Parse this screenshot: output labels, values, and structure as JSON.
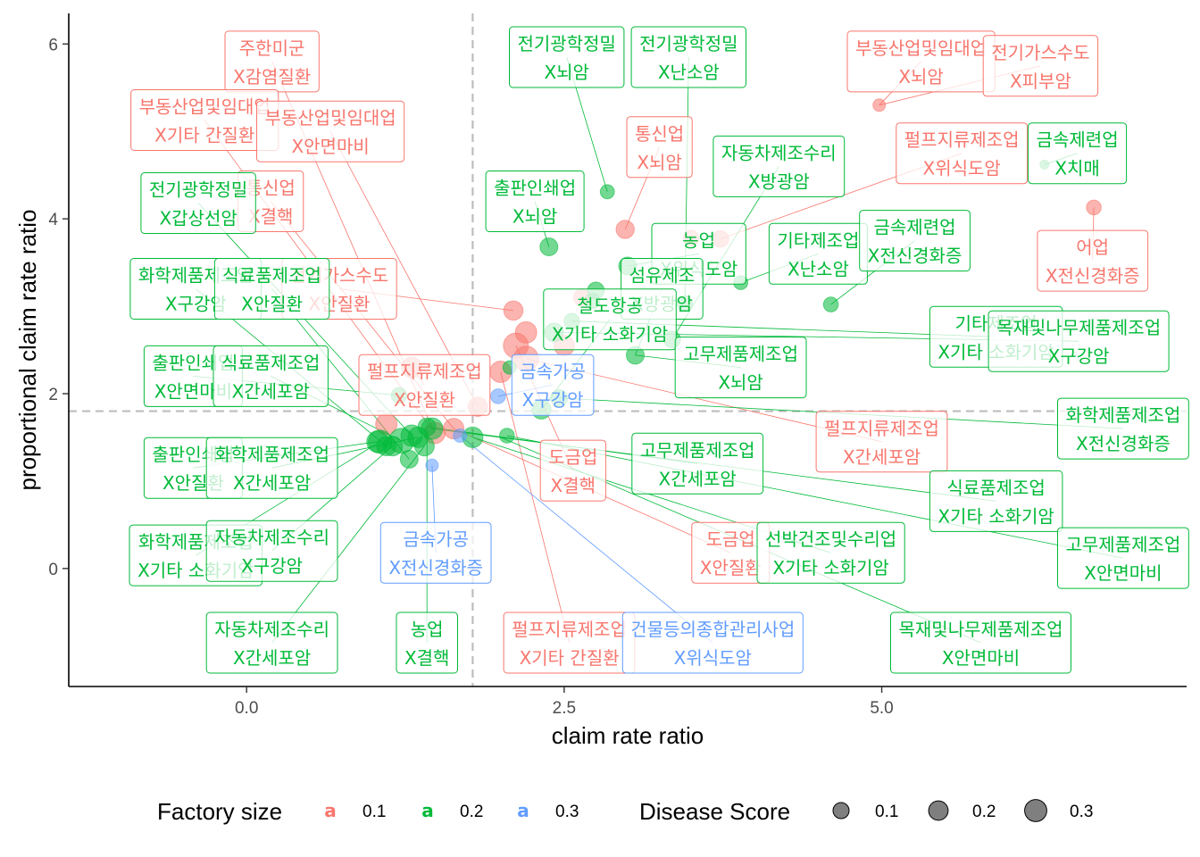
{
  "chart_data": {
    "type": "scatter",
    "xlabel": "claim rate ratio",
    "ylabel": "proportional claim rate ratio",
    "xlim": [
      -1.4,
      7.4
    ],
    "ylim": [
      -1.35,
      6.35
    ],
    "x_ticks": [
      0.0,
      2.5,
      5.0
    ],
    "x_tick_labels": [
      "0.0",
      "2.5",
      "5.0"
    ],
    "y_ticks": [
      0,
      2,
      4,
      6
    ],
    "y_tick_labels": [
      "0",
      "2",
      "4",
      "6"
    ],
    "ref_lines": {
      "x": 1.78,
      "y": 1.8
    },
    "grid": false,
    "legend_position": "bottom",
    "colors": {
      "0.1": "#F8766D",
      "0.2": "#00BA38",
      "0.3": "#619CFF"
    },
    "legend": {
      "color_title": "Factory size",
      "color_keys": [
        {
          "key": "a",
          "label": "0.1",
          "group": "0.1"
        },
        {
          "key": "a",
          "label": "0.2",
          "group": "0.2"
        },
        {
          "key": "a",
          "label": "0.3",
          "group": "0.3"
        }
      ],
      "size_title": "Disease Score",
      "size_keys": [
        {
          "label": "0.1",
          "score": 0.1
        },
        {
          "label": "0.2",
          "score": 0.2
        },
        {
          "label": "0.3",
          "score": 0.3
        }
      ]
    },
    "points": [
      {
        "x": 2.0,
        "y": 2.25,
        "g": "0.1",
        "s": 0.2
      },
      {
        "x": 3.73,
        "y": 3.77,
        "g": "0.1",
        "s": 0.1
      },
      {
        "x": 3.5,
        "y": 3.78,
        "g": "0.1",
        "s": 0.08
      },
      {
        "x": 2.1,
        "y": 2.95,
        "g": "0.1",
        "s": 0.15
      },
      {
        "x": 2.5,
        "y": 2.55,
        "g": "0.1",
        "s": 0.18
      },
      {
        "x": 1.3,
        "y": 2.3,
        "g": "0.1",
        "s": 0.18
      },
      {
        "x": 1.48,
        "y": 1.55,
        "g": "0.1",
        "s": 0.2
      },
      {
        "x": 1.1,
        "y": 1.65,
        "g": "0.1",
        "s": 0.2
      },
      {
        "x": 1.82,
        "y": 1.85,
        "g": "0.1",
        "s": 0.15
      },
      {
        "x": 2.2,
        "y": 2.7,
        "g": "0.1",
        "s": 0.2
      },
      {
        "x": 2.12,
        "y": 2.55,
        "g": "0.1",
        "s": 0.3
      },
      {
        "x": 2.2,
        "y": 2.4,
        "g": "0.1",
        "s": 0.3
      },
      {
        "x": 1.63,
        "y": 1.6,
        "g": "0.1",
        "s": 0.18
      },
      {
        "x": 6.67,
        "y": 4.13,
        "g": "0.1",
        "s": 0.07
      },
      {
        "x": 4.98,
        "y": 5.3,
        "g": "0.1",
        "s": 0.04
      },
      {
        "x": 2.64,
        "y": 3.1,
        "g": "0.1",
        "s": 0.1
      },
      {
        "x": 2.98,
        "y": 3.88,
        "g": "0.1",
        "s": 0.13
      },
      {
        "x": 2.07,
        "y": 2.3,
        "g": "0.2",
        "s": 0.05
      },
      {
        "x": 2.84,
        "y": 4.31,
        "g": "0.2",
        "s": 0.06
      },
      {
        "x": 2.38,
        "y": 3.68,
        "g": "0.2",
        "s": 0.12
      },
      {
        "x": 3.89,
        "y": 3.27,
        "g": "0.2",
        "s": 0.06
      },
      {
        "x": 3.45,
        "y": 3.03,
        "g": "0.2",
        "s": 0.08
      },
      {
        "x": 4.6,
        "y": 3.02,
        "g": "0.2",
        "s": 0.07
      },
      {
        "x": 6.28,
        "y": 4.62,
        "g": "0.2",
        "s": 0.01
      },
      {
        "x": 3.0,
        "y": 3.46,
        "g": "0.2",
        "s": 0.12
      },
      {
        "x": 2.75,
        "y": 3.18,
        "g": "0.2",
        "s": 0.1
      },
      {
        "x": 2.72,
        "y": 3.06,
        "g": "0.2",
        "s": 0.08
      },
      {
        "x": 2.56,
        "y": 2.83,
        "g": "0.2",
        "s": 0.08
      },
      {
        "x": 3.35,
        "y": 2.62,
        "g": "0.2",
        "s": 0.1
      },
      {
        "x": 3.06,
        "y": 2.44,
        "g": "0.2",
        "s": 0.12
      },
      {
        "x": 2.42,
        "y": 2.7,
        "g": "0.2",
        "s": 0.14
      },
      {
        "x": 2.32,
        "y": 1.82,
        "g": "0.2",
        "s": 0.15
      },
      {
        "x": 1.2,
        "y": 1.98,
        "g": "0.2",
        "s": 0.08
      },
      {
        "x": 2.46,
        "y": 1.95,
        "g": "0.2",
        "s": 0.1
      },
      {
        "x": 1.05,
        "y": 1.45,
        "g": "0.2",
        "s": 0.25
      },
      {
        "x": 1.22,
        "y": 1.46,
        "g": "0.2",
        "s": 0.3
      },
      {
        "x": 1.42,
        "y": 1.62,
        "g": "0.2",
        "s": 0.12
      },
      {
        "x": 1.46,
        "y": 1.6,
        "g": "0.2",
        "s": 0.2
      },
      {
        "x": 1.35,
        "y": 1.5,
        "g": "0.2",
        "s": 0.18
      },
      {
        "x": 1.28,
        "y": 1.25,
        "g": "0.2",
        "s": 0.12
      },
      {
        "x": 1.15,
        "y": 1.4,
        "g": "0.2",
        "s": 0.16
      },
      {
        "x": 1.78,
        "y": 1.5,
        "g": "0.2",
        "s": 0.18
      },
      {
        "x": 1.03,
        "y": 1.45,
        "g": "0.2",
        "s": 0.2
      },
      {
        "x": 1.1,
        "y": 1.4,
        "g": "0.2",
        "s": 0.15
      },
      {
        "x": 2.05,
        "y": 1.52,
        "g": "0.2",
        "s": 0.07
      },
      {
        "x": 1.4,
        "y": 1.4,
        "g": "0.2",
        "s": 0.16
      },
      {
        "x": 1.3,
        "y": 1.52,
        "g": "0.2",
        "s": 0.2
      },
      {
        "x": 1.98,
        "y": 1.97,
        "g": "0.3",
        "s": 0.07
      },
      {
        "x": 1.46,
        "y": 1.18,
        "g": "0.3",
        "s": 0.04
      },
      {
        "x": 1.68,
        "y": 1.52,
        "g": "0.3",
        "s": 0.05
      }
    ],
    "labels": [
      {
        "l1": "주한미군",
        "l2": "X감염질환",
        "g": "0.1",
        "lx": 0.2,
        "ly": 5.8,
        "px": 1.48,
        "py": 1.55
      },
      {
        "l1": "부동산업및임대업",
        "l2": "X기타 간질환",
        "g": "0.1",
        "lx": -0.33,
        "ly": 5.13,
        "px": 1.48,
        "py": 1.55
      },
      {
        "l1": "부동산업및임대업",
        "l2": "X안면마비",
        "g": "0.1",
        "lx": 0.66,
        "ly": 5.0,
        "px": 1.82,
        "py": 1.85
      },
      {
        "l1": "통신업",
        "l2": "X결핵",
        "g": "0.1",
        "lx": 0.19,
        "ly": 4.2,
        "px": 1.63,
        "py": 1.6
      },
      {
        "l1": "전기가스수도",
        "l2": "X안질환",
        "g": "0.1",
        "lx": 0.73,
        "ly": 3.2,
        "px": 2.1,
        "py": 2.95
      },
      {
        "l1": "통신업",
        "l2": "X뇌암",
        "g": "0.1",
        "lx": 3.25,
        "ly": 4.82,
        "px": 2.98,
        "py": 3.88
      },
      {
        "l1": "부동산업및임대업",
        "l2": "X뇌암",
        "g": "0.1",
        "lx": 5.31,
        "ly": 5.8,
        "px": 4.98,
        "py": 5.3
      },
      {
        "l1": "전기가스수도",
        "l2": "X피부암",
        "g": "0.1",
        "lx": 6.25,
        "ly": 5.75,
        "px": 4.98,
        "py": 5.3
      },
      {
        "l1": "펄프지류제조업",
        "l2": "X위식도암",
        "g": "0.1",
        "lx": 5.63,
        "ly": 4.75,
        "px": 3.73,
        "py": 3.77
      },
      {
        "l1": "어업",
        "l2": "X전신경화증",
        "g": "0.1",
        "lx": 6.66,
        "ly": 3.52,
        "px": 6.67,
        "py": 4.13
      },
      {
        "l1": "펄프지류제조업",
        "l2": "X안질환",
        "g": "0.1",
        "lx": 1.4,
        "ly": 2.1,
        "px": 1.3,
        "py": 2.3
      },
      {
        "l1": "펄프지류제조업",
        "l2": "X간세포암",
        "g": "0.1",
        "lx": 5.0,
        "ly": 1.45,
        "px": 2.2,
        "py": 2.4
      },
      {
        "l1": "도금업",
        "l2": "X결핵",
        "g": "0.1",
        "lx": 2.57,
        "ly": 1.12,
        "px": 2.12,
        "py": 2.55
      },
      {
        "l1": "도금업",
        "l2": "X안질환",
        "g": "0.1",
        "lx": 3.81,
        "ly": 0.18,
        "px": 1.63,
        "py": 1.6
      },
      {
        "l1": "펄프지류제조업",
        "l2": "X기타 간질환",
        "g": "0.1",
        "lx": 2.54,
        "ly": -0.85,
        "px": 2.0,
        "py": 2.25
      },
      {
        "l1": "전기광학정밀",
        "l2": "X뇌암",
        "g": "0.2",
        "lx": 2.52,
        "ly": 5.85,
        "px": 2.84,
        "py": 4.31
      },
      {
        "l1": "전기광학정밀",
        "l2": "X난소암",
        "g": "0.2",
        "lx": 3.48,
        "ly": 5.85,
        "px": 3.45,
        "py": 3.03
      },
      {
        "l1": "전기광학정밀",
        "l2": "X갑상선암",
        "g": "0.2",
        "lx": -0.38,
        "ly": 4.18,
        "px": 1.3,
        "py": 1.52
      },
      {
        "l1": "출판인쇄업",
        "l2": "X뇌암",
        "g": "0.2",
        "lx": 2.27,
        "ly": 4.2,
        "px": 2.38,
        "py": 3.68
      },
      {
        "l1": "자동차제조수리",
        "l2": "X방광암",
        "g": "0.2",
        "lx": 4.19,
        "ly": 4.6,
        "px": 3.35,
        "py": 2.62
      },
      {
        "l1": "농업",
        "l2": "X위식도암",
        "g": "0.2",
        "lx": 3.56,
        "ly": 3.6,
        "px": 3.0,
        "py": 3.46
      },
      {
        "l1": "기타제조업",
        "l2": "X난소암",
        "g": "0.2",
        "lx": 4.5,
        "ly": 3.6,
        "px": 3.89,
        "py": 3.27
      },
      {
        "l1": "금속제련업",
        "l2": "X전신경화증",
        "g": "0.2",
        "lx": 5.26,
        "ly": 3.75,
        "px": 4.6,
        "py": 3.02
      },
      {
        "l1": "금속제련업",
        "l2": "X치매",
        "g": "0.2",
        "lx": 6.54,
        "ly": 4.75,
        "px": 6.28,
        "py": 4.62
      },
      {
        "l1": "섬유제조",
        "l2": "X방광암",
        "g": "0.2",
        "lx": 3.27,
        "ly": 3.2,
        "px": 3.06,
        "py": 2.44
      },
      {
        "l1": "철도항공",
        "l2": "X기타 소화기암",
        "g": "0.2",
        "lx": 2.86,
        "ly": 2.85,
        "px": 2.32,
        "py": 1.82
      },
      {
        "l1": "기타제조업",
        "l2": "X기타 소화기암",
        "g": "0.2",
        "lx": 5.9,
        "ly": 2.65,
        "px": 2.56,
        "py": 2.83
      },
      {
        "l1": "목재및나무제품제조업",
        "l2": "X구강암",
        "g": "0.2",
        "lx": 6.55,
        "ly": 2.6,
        "px": 2.42,
        "py": 2.7
      },
      {
        "l1": "화학제품제조업",
        "l2": "X구강암",
        "g": "0.2",
        "lx": -0.4,
        "ly": 3.2,
        "px": 1.1,
        "py": 1.4
      },
      {
        "l1": "식료품제조업",
        "l2": "X안질환",
        "g": "0.2",
        "lx": 0.2,
        "ly": 3.2,
        "px": 1.28,
        "py": 1.25
      },
      {
        "l1": "고무제품제조업",
        "l2": "X뇌암",
        "g": "0.2",
        "lx": 3.89,
        "ly": 2.3,
        "px": 3.06,
        "py": 2.44
      },
      {
        "l1": "출판인쇄업",
        "l2": "X안면마비",
        "g": "0.2",
        "lx": -0.42,
        "ly": 2.2,
        "px": 1.2,
        "py": 1.98
      },
      {
        "l1": "식료품제조업",
        "l2": "X간세포암",
        "g": "0.2",
        "lx": 0.19,
        "ly": 2.2,
        "px": 1.22,
        "py": 1.46
      },
      {
        "l1": "화학제품제조업",
        "l2": "X전신경화증",
        "g": "0.2",
        "lx": 6.9,
        "ly": 1.6,
        "px": 2.46,
        "py": 1.95
      },
      {
        "l1": "고무제품제조업",
        "l2": "X간세포암",
        "g": "0.2",
        "lx": 3.55,
        "ly": 1.2,
        "px": 1.42,
        "py": 1.62
      },
      {
        "l1": "출판인쇄업",
        "l2": "X안질환",
        "g": "0.2",
        "lx": -0.42,
        "ly": 1.15,
        "px": 1.03,
        "py": 1.45
      },
      {
        "l1": "화학제품제조업",
        "l2": "X간세포암",
        "g": "0.2",
        "lx": 0.2,
        "ly": 1.15,
        "px": 1.35,
        "py": 1.5
      },
      {
        "l1": "식료품제조업",
        "l2": "X기타 소화기암",
        "g": "0.2",
        "lx": 5.9,
        "ly": 0.77,
        "px": 1.46,
        "py": 1.6
      },
      {
        "l1": "화학제품제조업",
        "l2": "X기타 소화기암",
        "g": "0.2",
        "lx": -0.4,
        "ly": 0.15,
        "px": 1.05,
        "py": 1.45
      },
      {
        "l1": "자동차제조수리",
        "l2": "X구강암",
        "g": "0.2",
        "lx": 0.2,
        "ly": 0.2,
        "px": 1.15,
        "py": 1.4
      },
      {
        "l1": "선박건조및수리업",
        "l2": "X기타 소화기암",
        "g": "0.2",
        "lx": 4.6,
        "ly": 0.18,
        "px": 1.78,
        "py": 1.5
      },
      {
        "l1": "고무제품제조업",
        "l2": "X안면마비",
        "g": "0.2",
        "lx": 6.9,
        "ly": 0.12,
        "px": 2.05,
        "py": 1.52
      },
      {
        "l1": "자동차제조수리",
        "l2": "X간세포암",
        "g": "0.2",
        "lx": 0.2,
        "ly": -0.85,
        "px": 1.4,
        "py": 1.4
      },
      {
        "l1": "농업",
        "l2": "X결핵",
        "g": "0.2",
        "lx": 1.42,
        "ly": -0.85,
        "px": 1.42,
        "py": 1.62
      },
      {
        "l1": "목재및나무제품제조업",
        "l2": "X안면마비",
        "g": "0.2",
        "lx": 5.78,
        "ly": -0.85,
        "px": 2.0,
        "py": 1.5
      },
      {
        "l1": "금속가공",
        "l2": "X구강암",
        "g": "0.3",
        "lx": 2.41,
        "ly": 2.1,
        "px": 1.98,
        "py": 1.97
      },
      {
        "l1": "금속가공",
        "l2": "X전신경화증",
        "g": "0.3",
        "lx": 1.49,
        "ly": 0.18,
        "px": 1.46,
        "py": 1.18
      },
      {
        "l1": "건물등의종합관리사업",
        "l2": "X위식도암",
        "g": "0.3",
        "lx": 3.67,
        "ly": -0.85,
        "px": 1.68,
        "py": 1.52
      }
    ]
  }
}
